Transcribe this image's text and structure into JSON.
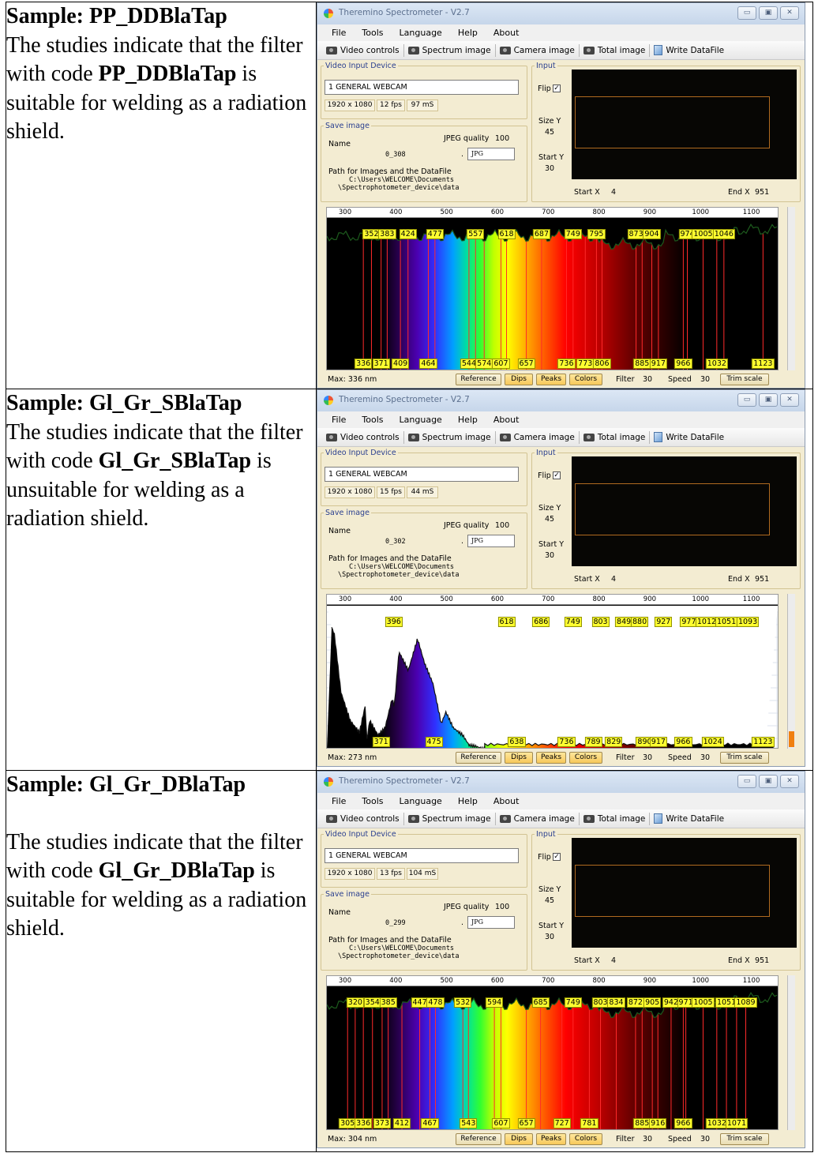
{
  "window": {
    "title": "Theremino Spectrometer - V2.7",
    "menu": [
      "File",
      "Tools",
      "Language",
      "Help",
      "About"
    ],
    "toolbar": [
      "Video controls",
      "Spectrum image",
      "Camera image",
      "Total image",
      "Write DataFile"
    ],
    "labels": {
      "video_group": "Video Input Device",
      "input_group": "Input",
      "save_group": "Save image",
      "name": "Name",
      "jpeg_quality": "JPEG quality",
      "path_label": "Path for Images and the DataFile",
      "flip": "Flip",
      "size_y": "Size Y",
      "start_y": "Start Y",
      "start_x": "Start X",
      "end_x": "End X",
      "filter": "Filter",
      "speed": "Speed",
      "dot": "."
    },
    "buttons": {
      "reference": "Reference",
      "dips": "Dips",
      "peaks": "Peaks",
      "colors": "Colors",
      "trim": "Trim scale"
    },
    "colors": {
      "peak_bg": "#ffff30",
      "peak_line": "#ff2020",
      "dip_line": "#ff2020",
      "graph_bg": "#000000"
    }
  },
  "rows": [
    {
      "title": "Sample: PP_DDBlaTap",
      "text_before": "The studies indicate that the filter with code ",
      "code": "PP_DDBlaTap",
      "text_after": " is suitable for welding as a radiation shield.",
      "shot": {
        "device": "1 GENERAL WEBCAM",
        "resolution": "1920 x 1080",
        "fps": "12 fps",
        "ms": "97 mS",
        "jpeg_quality": "100",
        "file_name": "0_308",
        "format": "JPG",
        "path_line1": "C:\\Users\\WELCOME\\Documents",
        "path_line2": "\\Spectrophotometer_device\\data",
        "flip": "✓",
        "size_y": "45",
        "start_y": "30",
        "start_x": "4",
        "end_x": "951",
        "scale_ticks": [
          "300",
          "400",
          "500",
          "600",
          "700",
          "800",
          "900",
          "1000",
          "1100"
        ],
        "max": "Max: 336 nm",
        "filter": "30",
        "speed": "30",
        "style": "flat",
        "top_labels": [
          "352",
          "383",
          "424",
          "477",
          "557",
          "618",
          "687",
          "749",
          "795",
          "873",
          "904",
          "974",
          "1005",
          "1046"
        ],
        "bottom_labels": [
          "336",
          "371",
          "409",
          "464",
          "544",
          "574",
          "607",
          "657",
          "736",
          "773",
          "806",
          "885",
          "917",
          "966",
          "1032",
          "1123"
        ]
      }
    },
    {
      "title": "Sample: Gl_Gr_SBlaTap",
      "text_before": "The studies indicate that the filter with code ",
      "code": "Gl_Gr_SBlaTap",
      "text_after": " is unsuitable for welding as a radiation shield.",
      "shot": {
        "device": "1 GENERAL WEBCAM",
        "resolution": "1920 x 1080",
        "fps": "15 fps",
        "ms": "44 mS",
        "jpeg_quality": "100",
        "file_name": "0_302",
        "format": "JPG",
        "path_line1": "C:\\Users\\WELCOME\\Documents",
        "path_line2": "\\Spectrophotometer_device\\data",
        "flip": "✓",
        "size_y": "45",
        "start_y": "30",
        "start_x": "4",
        "end_x": "951",
        "scale_ticks": [
          "300",
          "400",
          "500",
          "600",
          "700",
          "800",
          "900",
          "1000",
          "1100"
        ],
        "max": "Max: 273 nm",
        "filter": "30",
        "speed": "30",
        "style": "peak",
        "top_labels": [
          "396",
          "618",
          "686",
          "749",
          "803",
          "849",
          "880",
          "927",
          "977",
          "1012",
          "1051",
          "1093"
        ],
        "bottom_labels": [
          "371",
          "475",
          "638",
          "736",
          "789",
          "829",
          "890",
          "917",
          "966",
          "1024",
          "1123"
        ]
      }
    },
    {
      "title": "Sample: Gl_Gr_DBlaTap",
      "text_before": "The studies indicate that the filter with code ",
      "code": "Gl_Gr_DBlaTap",
      "text_after": " is suitable for welding as a radiation shield.",
      "shot": {
        "device": "1 GENERAL WEBCAM",
        "resolution": "1920 x 1080",
        "fps": "13 fps",
        "ms": "104 mS",
        "jpeg_quality": "100",
        "file_name": "0_299",
        "format": "JPG",
        "path_line1": "C:\\Users\\WELCOME\\Documents",
        "path_line2": "\\Spectrophotometer_device\\data",
        "flip": "✓",
        "size_y": "45",
        "start_y": "30",
        "start_x": "4",
        "end_x": "951",
        "scale_ticks": [
          "300",
          "400",
          "500",
          "600",
          "700",
          "800",
          "900",
          "1000",
          "1100"
        ],
        "max": "Max: 304 nm",
        "filter": "30",
        "speed": "30",
        "style": "flat",
        "top_labels": [
          "320",
          "354",
          "385",
          "447",
          "478",
          "532",
          "594",
          "685",
          "749",
          "803",
          "834",
          "872",
          "905",
          "942",
          "971",
          "1005",
          "1051",
          "1089"
        ],
        "bottom_labels": [
          "305",
          "336",
          "373",
          "412",
          "467",
          "543",
          "607",
          "657",
          "727",
          "781",
          "885",
          "916",
          "966",
          "1032",
          "1071"
        ]
      }
    }
  ]
}
